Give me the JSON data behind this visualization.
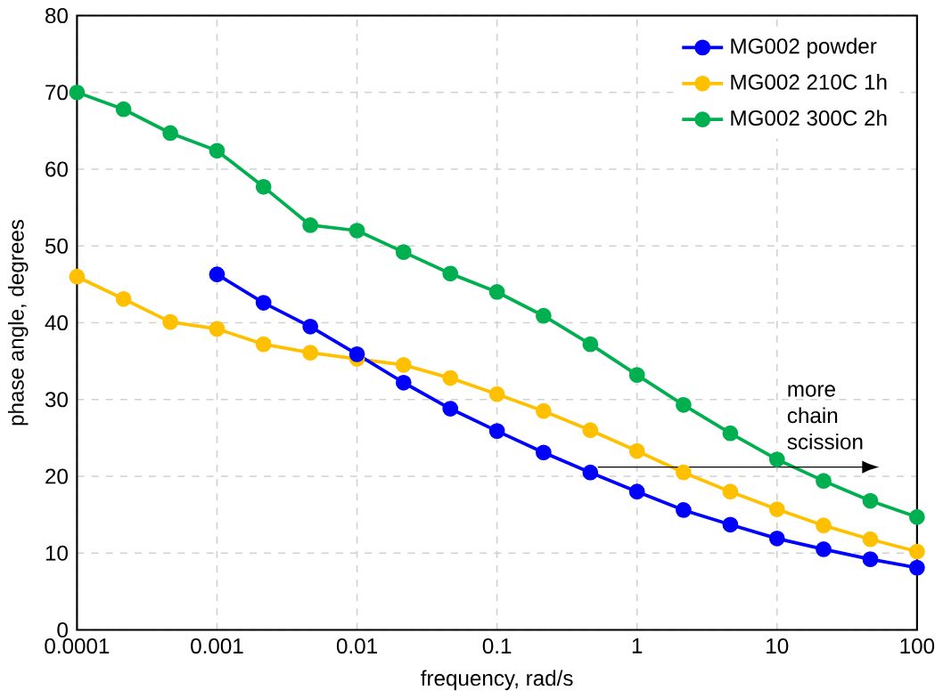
{
  "chart_data": {
    "type": "line",
    "xlabel": "frequency, rad/s",
    "ylabel": "phase angle, degrees",
    "x": [
      0.0001,
      0.000215,
      0.000464,
      0.001,
      0.00215,
      0.00464,
      0.01,
      0.0215,
      0.0464,
      0.1,
      0.215,
      0.464,
      1,
      2.15,
      4.64,
      10,
      21.5,
      46.4,
      100
    ],
    "series": [
      {
        "name": "MG002 powder",
        "color": "#0000ff",
        "x": [
          0.001,
          0.00215,
          0.00464,
          0.01,
          0.0215,
          0.0464,
          0.1,
          0.215,
          0.464,
          1,
          2.15,
          4.64,
          10,
          21.5,
          46.4,
          100
        ],
        "values": [
          46.3,
          42.6,
          39.5,
          35.9,
          32.2,
          28.8,
          25.9,
          23.1,
          20.5,
          18.0,
          15.6,
          13.7,
          11.9,
          10.5,
          9.2,
          8.1
        ]
      },
      {
        "name": "MG002 210C 1h",
        "color": "#ffc000",
        "values": [
          46.0,
          43.1,
          40.1,
          39.2,
          37.2,
          36.1,
          35.3,
          34.5,
          32.8,
          30.7,
          28.5,
          26.0,
          23.3,
          20.5,
          18.0,
          15.7,
          13.6,
          11.8,
          10.2
        ]
      },
      {
        "name": "MG002 300C 2h",
        "color": "#00b050",
        "values": [
          70.0,
          67.8,
          64.7,
          62.4,
          57.7,
          52.7,
          52.0,
          49.2,
          46.4,
          44.0,
          40.9,
          37.2,
          33.2,
          29.3,
          25.6,
          22.2,
          19.4,
          16.8,
          14.7
        ]
      }
    ],
    "log": "x",
    "xlim": [
      0.0001,
      100
    ],
    "xticks": [
      0.0001,
      0.001,
      0.01,
      0.1,
      1,
      10,
      100
    ],
    "ylim": [
      0,
      80
    ],
    "yticks": [
      0,
      10,
      20,
      30,
      40,
      50,
      60,
      70,
      80
    ],
    "grid": true,
    "legend": "top right",
    "marker": "circle",
    "line_style": "solid",
    "annotations": [
      "more chain scission"
    ]
  }
}
